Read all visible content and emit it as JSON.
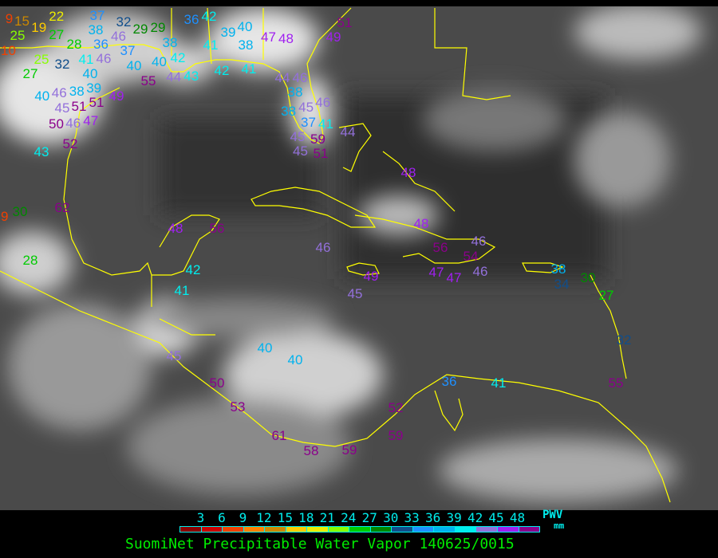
{
  "map": {
    "product_title": "SuomiNet Precipitable Water Vapor 140625/0015",
    "background": "grayscale infrared satellite imagery",
    "coastline_color": "#ffff00",
    "station_values": [
      9,
      15,
      19,
      22,
      25,
      27,
      37,
      38,
      36,
      46,
      32,
      29,
      29,
      36,
      42,
      39,
      40,
      38,
      47,
      48,
      49,
      51,
      10,
      28,
      25,
      32,
      41,
      46,
      37,
      40,
      38,
      40,
      42,
      41,
      42,
      41,
      27,
      40,
      39,
      55,
      44,
      43,
      44,
      46,
      38,
      40,
      46,
      38,
      51,
      49,
      45,
      51,
      46,
      47,
      46,
      38,
      45,
      37,
      41,
      50,
      52,
      43,
      45,
      45,
      59,
      51,
      44,
      48,
      62,
      30,
      9,
      28,
      48,
      56,
      48,
      46,
      56,
      54,
      46,
      49,
      42,
      41,
      45,
      47,
      47,
      46,
      38,
      34,
      30,
      27,
      32,
      40,
      40,
      45,
      50,
      53,
      36,
      41,
      55,
      52,
      59,
      61,
      58,
      59
    ]
  },
  "legend": {
    "ticks": [
      "3",
      "6",
      "9",
      "12",
      "15",
      "18",
      "21",
      "24",
      "27",
      "30",
      "33",
      "36",
      "39",
      "42",
      "45",
      "48"
    ],
    "unit_top": "PWV",
    "unit_bottom": "mm",
    "colors": [
      "#8b0000",
      "#cc0000",
      "#f04000",
      "#ff8000",
      "#cc8800",
      "#ffcc00",
      "#eeee00",
      "#88ff00",
      "#00cc00",
      "#008800",
      "#104e8b",
      "#1e90ff",
      "#00b2ee",
      "#00eeee",
      "#9370db",
      "#a020f0",
      "#8b008b"
    ]
  }
}
